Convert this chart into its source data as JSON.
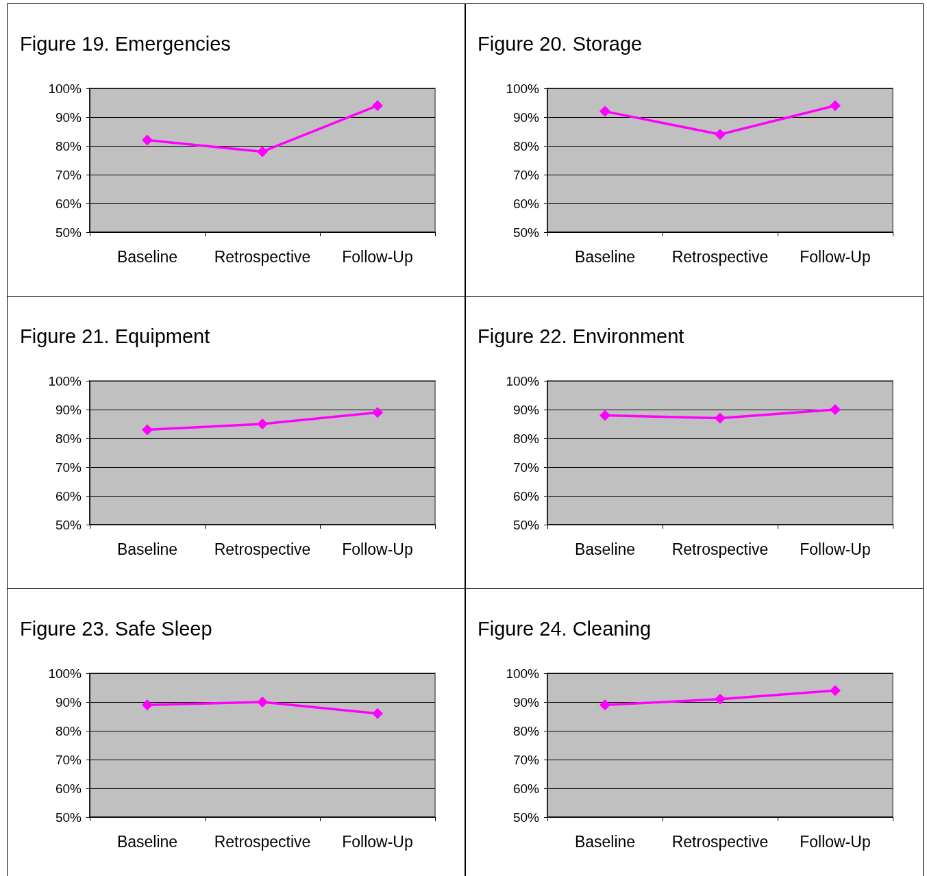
{
  "chart_data": [
    {
      "type": "line",
      "title": "Figure 19. Emergencies",
      "categories": [
        "Baseline",
        "Retrospective",
        "Follow-Up"
      ],
      "series": [
        {
          "color": "#ff00ff",
          "values": [
            82,
            78,
            94
          ]
        }
      ],
      "ylim": [
        50,
        100
      ],
      "yticks": [
        {
          "value": 50,
          "label": "50%"
        },
        {
          "value": 60,
          "label": "60%"
        },
        {
          "value": 70,
          "label": "70%"
        },
        {
          "value": 80,
          "label": "80%"
        },
        {
          "value": 90,
          "label": "90%"
        },
        {
          "value": 100,
          "label": "100%"
        }
      ],
      "grid": "y",
      "marker": "diamond"
    },
    {
      "type": "line",
      "title": "Figure 20. Storage",
      "categories": [
        "Baseline",
        "Retrospective",
        "Follow-Up"
      ],
      "series": [
        {
          "color": "#ff00ff",
          "values": [
            92,
            84,
            94
          ]
        }
      ],
      "ylim": [
        50,
        100
      ],
      "yticks": [
        {
          "value": 50,
          "label": "50%"
        },
        {
          "value": 60,
          "label": "60%"
        },
        {
          "value": 70,
          "label": "70%"
        },
        {
          "value": 80,
          "label": "80%"
        },
        {
          "value": 90,
          "label": "90%"
        },
        {
          "value": 100,
          "label": "100%"
        }
      ],
      "grid": "y",
      "marker": "diamond"
    },
    {
      "type": "line",
      "title": "Figure 21. Equipment",
      "categories": [
        "Baseline",
        "Retrospective",
        "Follow-Up"
      ],
      "series": [
        {
          "color": "#ff00ff",
          "values": [
            83,
            85,
            89
          ]
        }
      ],
      "ylim": [
        50,
        100
      ],
      "yticks": [
        {
          "value": 50,
          "label": "50%"
        },
        {
          "value": 60,
          "label": "60%"
        },
        {
          "value": 70,
          "label": "70%"
        },
        {
          "value": 80,
          "label": "80%"
        },
        {
          "value": 90,
          "label": "90%"
        },
        {
          "value": 100,
          "label": "100%"
        }
      ],
      "grid": "y",
      "marker": "diamond"
    },
    {
      "type": "line",
      "title": "Figure 22. Environment",
      "categories": [
        "Baseline",
        "Retrospective",
        "Follow-Up"
      ],
      "series": [
        {
          "color": "#ff00ff",
          "values": [
            88,
            87,
            90
          ]
        }
      ],
      "ylim": [
        50,
        100
      ],
      "yticks": [
        {
          "value": 50,
          "label": "50%"
        },
        {
          "value": 60,
          "label": "60%"
        },
        {
          "value": 70,
          "label": "70%"
        },
        {
          "value": 80,
          "label": "80%"
        },
        {
          "value": 90,
          "label": "90%"
        },
        {
          "value": 100,
          "label": "100%"
        }
      ],
      "grid": "y",
      "marker": "diamond"
    },
    {
      "type": "line",
      "title": "Figure 23. Safe Sleep",
      "categories": [
        "Baseline",
        "Retrospective",
        "Follow-Up"
      ],
      "series": [
        {
          "color": "#ff00ff",
          "values": [
            89,
            90,
            86
          ]
        }
      ],
      "ylim": [
        50,
        100
      ],
      "yticks": [
        {
          "value": 50,
          "label": "50%"
        },
        {
          "value": 60,
          "label": "60%"
        },
        {
          "value": 70,
          "label": "70%"
        },
        {
          "value": 80,
          "label": "80%"
        },
        {
          "value": 90,
          "label": "90%"
        },
        {
          "value": 100,
          "label": "100%"
        }
      ],
      "grid": "y",
      "marker": "diamond"
    },
    {
      "type": "line",
      "title": "Figure 24. Cleaning",
      "categories": [
        "Baseline",
        "Retrospective",
        "Follow-Up"
      ],
      "series": [
        {
          "color": "#ff00ff",
          "values": [
            89,
            91,
            94
          ]
        }
      ],
      "ylim": [
        50,
        100
      ],
      "yticks": [
        {
          "value": 50,
          "label": "50%"
        },
        {
          "value": 60,
          "label": "60%"
        },
        {
          "value": 70,
          "label": "70%"
        },
        {
          "value": 80,
          "label": "80%"
        },
        {
          "value": 90,
          "label": "90%"
        },
        {
          "value": 100,
          "label": "100%"
        }
      ],
      "grid": "y",
      "marker": "diamond"
    }
  ]
}
